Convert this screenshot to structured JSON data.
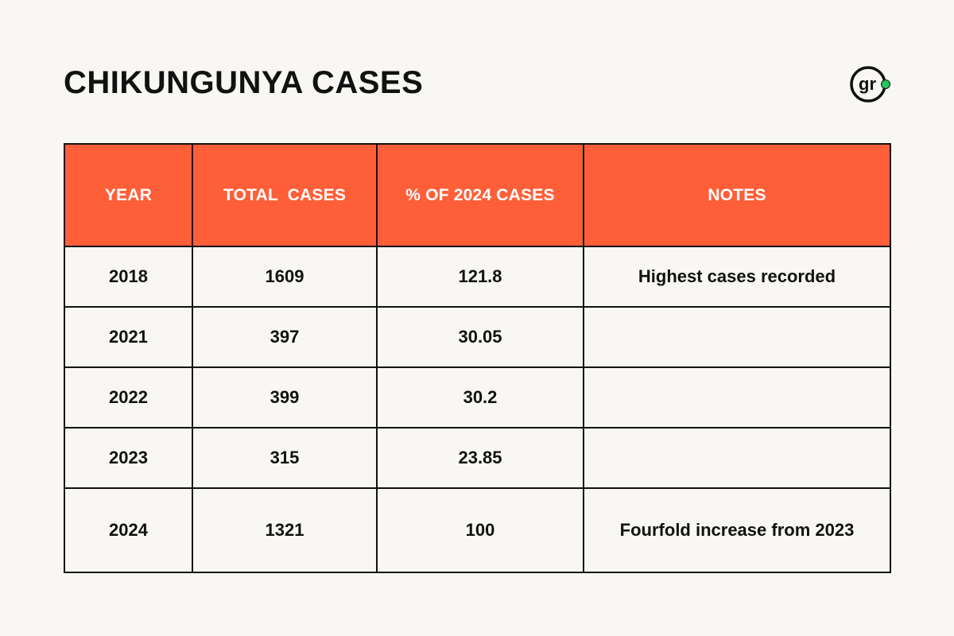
{
  "title": "CHIKUNGUNYA CASES",
  "logo": {
    "text": "gr",
    "dot_color": "#22c55e"
  },
  "colors": {
    "header_bg": "#ff5f38",
    "header_text": "#ffffff",
    "border": "#111111",
    "page_bg": "#f8f7f3"
  },
  "chart_data": {
    "type": "table",
    "columns": [
      "YEAR",
      "TOTAL  CASES",
      "% OF 2024 CASES",
      "NOTES"
    ],
    "rows": [
      [
        "2018",
        "1609",
        "121.8",
        "Highest cases recorded"
      ],
      [
        "2021",
        "397",
        "30.05",
        ""
      ],
      [
        "2022",
        "399",
        "30.2",
        ""
      ],
      [
        "2023",
        "315",
        "23.85",
        ""
      ],
      [
        "2024",
        "1321",
        "100",
        "Fourfold increase from 2023"
      ]
    ]
  }
}
